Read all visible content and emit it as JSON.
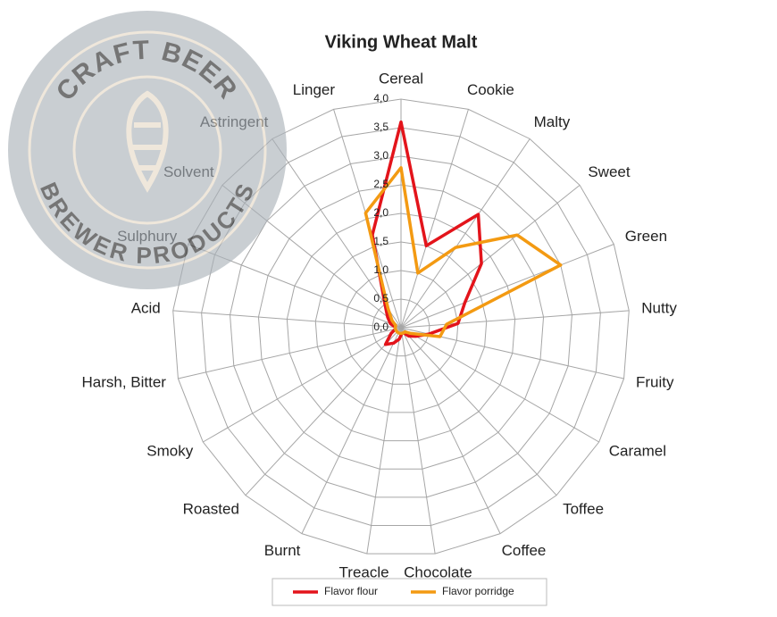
{
  "chart_data": {
    "type": "radar",
    "title": "Viking  Wheat Malt",
    "categories": [
      "Cereal",
      "Cookie",
      "Malty",
      "Sweet",
      "Green",
      "Nutty",
      "Fruity",
      "Caramel",
      "Toffee",
      "Coffee",
      "Chocolate",
      "Treacle",
      "Burnt",
      "Roasted",
      "Smoky",
      "Harsh, Bitter",
      "Acid",
      "Sulphury",
      "Solvent",
      "Astringent",
      "Linger"
    ],
    "series": [
      {
        "name": "Flavor flour",
        "color": "#e3141b",
        "values": [
          3.6,
          1.5,
          2.4,
          1.8,
          1.2,
          1.0,
          0.5,
          0.3,
          0.2,
          0.1,
          0.1,
          0.2,
          0.3,
          0.4,
          0.2,
          0.1,
          0.1,
          0.2,
          0.3,
          0.5,
          1.7
        ]
      },
      {
        "name": "Flavor porridge",
        "color": "#f39a12",
        "values": [
          2.8,
          1.0,
          1.7,
          2.6,
          3.0,
          0.8,
          0.7,
          0.2,
          0.1,
          0.1,
          0.1,
          0.1,
          0.1,
          0.1,
          0.1,
          0.1,
          0.1,
          0.1,
          0.2,
          0.4,
          2.1
        ]
      }
    ],
    "ylim": [
      0,
      4
    ],
    "yticks": [
      {
        "value": 0,
        "label": "0,0"
      },
      {
        "value": 0.5,
        "label": "0,5"
      },
      {
        "value": 1,
        "label": "1,0"
      },
      {
        "value": 1.5,
        "label": "1,5"
      },
      {
        "value": 2,
        "label": "2,0"
      },
      {
        "value": 2.5,
        "label": "2,5"
      },
      {
        "value": 3,
        "label": "3,0"
      },
      {
        "value": 3.5,
        "label": "3,5"
      },
      {
        "value": 4,
        "label": "4,0"
      }
    ],
    "grid": true,
    "legend": "bottom"
  },
  "watermark": {
    "top": "CRAFT BEER",
    "bottom": "BREWER PRODUCTS"
  }
}
